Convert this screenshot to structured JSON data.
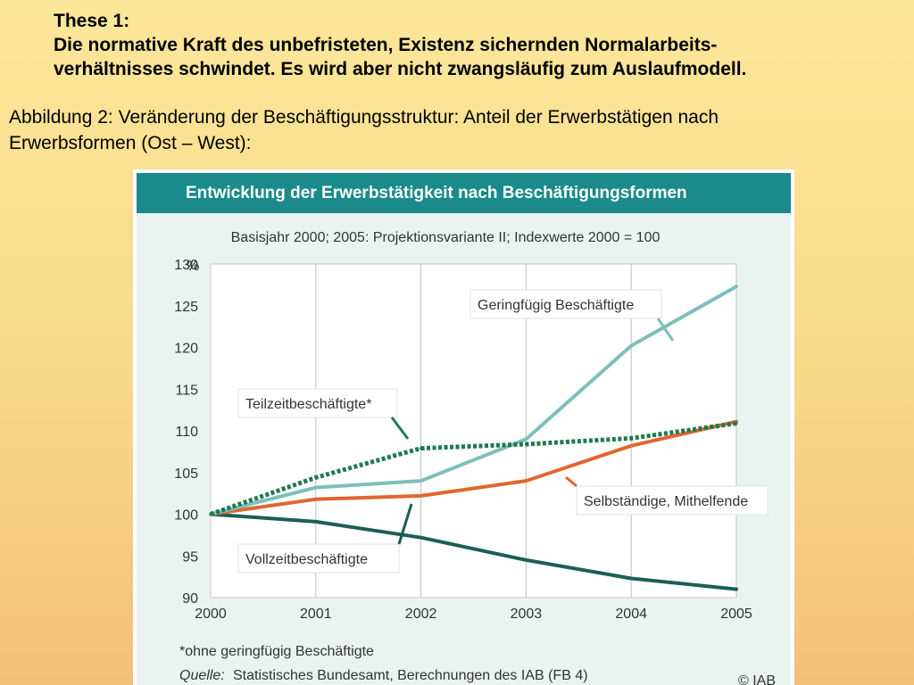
{
  "thesis": {
    "heading": "These 1:",
    "line1": "Die normative Kraft des unbefristeten, Existenz sichernden Normalarbeits-",
    "line2": "verhältnisses schwindet. Es wird aber nicht zwangsläufig zum Auslaufmodell."
  },
  "caption": {
    "line1": "Abbildung 2: Veränderung der Beschäftigungsstruktur: Anteil der Erwerbstätigen nach",
    "line2": "Erwerbsformen (Ost – West):"
  },
  "colors": {
    "header_bg": "#1a8a8a",
    "panel_bg": "#eaf3ef",
    "geringfuegig": "#7ebfbb",
    "teilzeit": "#1e7a4e",
    "selbststaendig": "#e0662e",
    "vollzeit": "#1c5e54"
  },
  "chart_data": {
    "type": "line",
    "title": "Entwicklung der Erwerbstätigkeit nach Beschäftigungsformen",
    "subtitle": "Basisjahr 2000; 2005: Projektionsvariante II; Indexwerte 2000 = 100",
    "ylabel": "%",
    "x": [
      "2000",
      "2001",
      "2002",
      "2003",
      "2004",
      "2005"
    ],
    "ylim": [
      90,
      130
    ],
    "yticks": [
      90,
      95,
      100,
      105,
      110,
      115,
      120,
      125,
      130
    ],
    "grid": false,
    "series": [
      {
        "name": "Geringfügig Beschäftigte",
        "values": [
          100,
          103.2,
          104,
          109,
          120.2,
          127.3
        ],
        "style": "solid",
        "color": "#7ebfbb"
      },
      {
        "name": "Teilzeitbeschäftigte*",
        "values": [
          100,
          104.4,
          107.9,
          108.4,
          109.1,
          110.9
        ],
        "style": "dotted",
        "color": "#1e7a4e"
      },
      {
        "name": "Selbständige, Mithelfende",
        "values": [
          100,
          101.8,
          102.2,
          104,
          108.2,
          111.1
        ],
        "style": "solid",
        "color": "#e0662e"
      },
      {
        "name": "Vollzeitbeschäftigte",
        "values": [
          100,
          99.1,
          97.2,
          94.5,
          92.3,
          91
        ],
        "style": "solid",
        "color": "#1c5e54"
      }
    ],
    "footnote": "*ohne geringfügig Beschäftigte",
    "source_label": "Quelle:",
    "source_text": "Statistisches Bundesamt, Berechnungen des IAB (FB 4)",
    "copyright": "© IAB"
  }
}
